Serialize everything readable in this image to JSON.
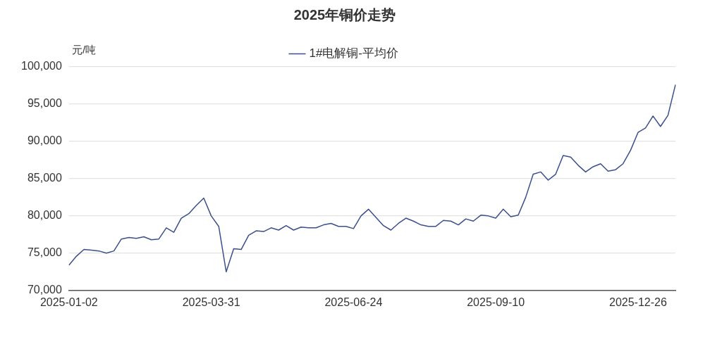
{
  "chart_data": {
    "type": "line",
    "title": "2025年铜价走势",
    "ylabel": "元/吨",
    "categories": [
      "2025-01-02",
      null,
      null,
      null,
      null,
      null,
      null,
      null,
      null,
      null,
      null,
      null,
      null,
      null,
      null,
      null,
      null,
      null,
      null,
      "2025-03-31",
      null,
      null,
      null,
      null,
      null,
      null,
      null,
      null,
      null,
      null,
      null,
      null,
      null,
      null,
      null,
      null,
      null,
      null,
      "2025-06-24",
      null,
      null,
      null,
      null,
      null,
      null,
      null,
      null,
      null,
      null,
      null,
      null,
      null,
      null,
      null,
      null,
      null,
      null,
      "2025-09-10",
      null,
      null,
      null,
      null,
      null,
      null,
      null,
      null,
      null,
      null,
      null,
      null,
      null,
      null,
      null,
      null,
      null,
      null,
      "2025-12-26",
      null,
      null,
      null,
      null,
      null
    ],
    "series": [
      {
        "name": "1#电解铜-平均价",
        "color": "#3b4f8c",
        "values": [
          73400,
          74600,
          75500,
          75400,
          75300,
          75000,
          75300,
          76900,
          77100,
          77000,
          77200,
          76800,
          76900,
          78400,
          77800,
          79700,
          80300,
          81400,
          82400,
          80000,
          78600,
          72500,
          75600,
          75500,
          77400,
          78000,
          77900,
          78400,
          78100,
          78700,
          78100,
          78500,
          78400,
          78400,
          78800,
          79000,
          78600,
          78600,
          78300,
          80000,
          80900,
          79800,
          78700,
          78100,
          79000,
          79700,
          79300,
          78800,
          78600,
          78600,
          79400,
          79300,
          78800,
          79600,
          79300,
          80100,
          80000,
          79700,
          80900,
          79900,
          80100,
          82500,
          85600,
          85900,
          84800,
          85600,
          88100,
          87900,
          86800,
          85900,
          86600,
          87000,
          86000,
          86200,
          87000,
          88800,
          91200,
          91800,
          93400,
          92000,
          93500,
          97600
        ]
      }
    ],
    "ylim": [
      70000,
      100000
    ],
    "yticks": [
      {
        "value": 70000,
        "label": "70,000"
      },
      {
        "value": 75000,
        "label": "75,000"
      },
      {
        "value": 80000,
        "label": "80,000"
      },
      {
        "value": 85000,
        "label": "85,000"
      },
      {
        "value": 90000,
        "label": "90,000"
      },
      {
        "value": 95000,
        "label": "95,000"
      },
      {
        "value": 100000,
        "label": "100,000"
      }
    ],
    "grid": "y",
    "legend": "top",
    "marker": "none",
    "line_style": "solid"
  }
}
